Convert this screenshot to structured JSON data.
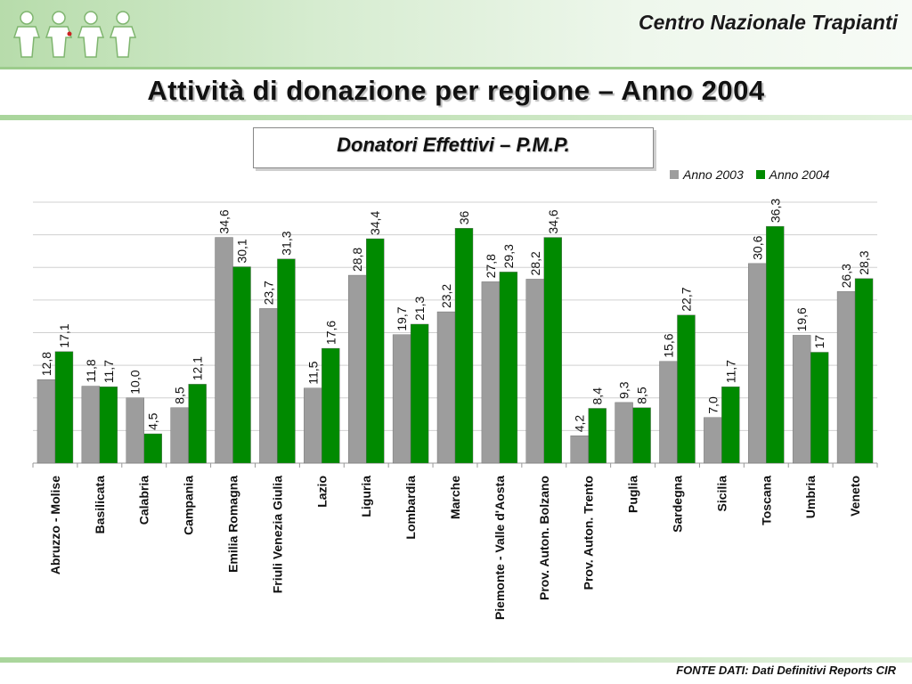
{
  "header": {
    "organization": "Centro Nazionale Trapianti",
    "logo_icon": "people-figures-logo-icon"
  },
  "title": "Attività di donazione per regione – Anno 2004",
  "subtitle": "Donatori Effettivi – P.M.P.",
  "source": "FONTE DATI: Dati Definitivi Reports CIR",
  "colors": {
    "anno2003": "#9d9d9d",
    "anno2004": "#008a00"
  },
  "chart_data": {
    "type": "bar",
    "categories": [
      "Abruzzo - Molise",
      "Basilicata",
      "Calabria",
      "Campania",
      "Emilia Romagna",
      "Friuli Venezia Giulia",
      "Lazio",
      "Liguria",
      "Lombardia",
      "Marche",
      "Piemonte - Valle d'Aosta",
      "Prov. Auton. Bolzano",
      "Prov. Auton. Trento",
      "Puglia",
      "Sardegna",
      "Sicilia",
      "Toscana",
      "Umbria",
      "Veneto"
    ],
    "series": [
      {
        "name": "Anno 2003",
        "values": [
          12.8,
          11.8,
          10.0,
          8.5,
          34.6,
          23.7,
          11.5,
          28.8,
          19.7,
          23.2,
          27.8,
          28.2,
          4.2,
          9.3,
          15.6,
          7.0,
          30.6,
          19.6,
          26.3
        ],
        "labels": [
          "12,8",
          "11,8",
          "10,0",
          "8,5",
          "34,6",
          "23,7",
          "11,5",
          "28,8",
          "19,7",
          "23,2",
          "27,8",
          "28,2",
          "4,2",
          "9,3",
          "15,6",
          "7,0",
          "30,6",
          "19,6",
          "26,3"
        ]
      },
      {
        "name": "Anno 2004",
        "values": [
          17.1,
          11.7,
          4.5,
          12.1,
          30.1,
          31.3,
          17.6,
          34.4,
          21.3,
          36,
          29.3,
          34.6,
          8.4,
          8.5,
          22.7,
          11.7,
          36.3,
          17,
          28.3
        ],
        "labels": [
          "17,1",
          "11,7",
          "4,5",
          "12,1",
          "30,1",
          "31,3",
          "17,6",
          "34,4",
          "21,3",
          "36",
          "29,3",
          "34,6",
          "8,4",
          "8,5",
          "22,7",
          "11,7",
          "36,3",
          "17",
          "28,3"
        ]
      }
    ],
    "ylim": [
      0,
      40
    ],
    "gridlines": true,
    "gridline_step": 5,
    "legend_position": "top-right"
  }
}
